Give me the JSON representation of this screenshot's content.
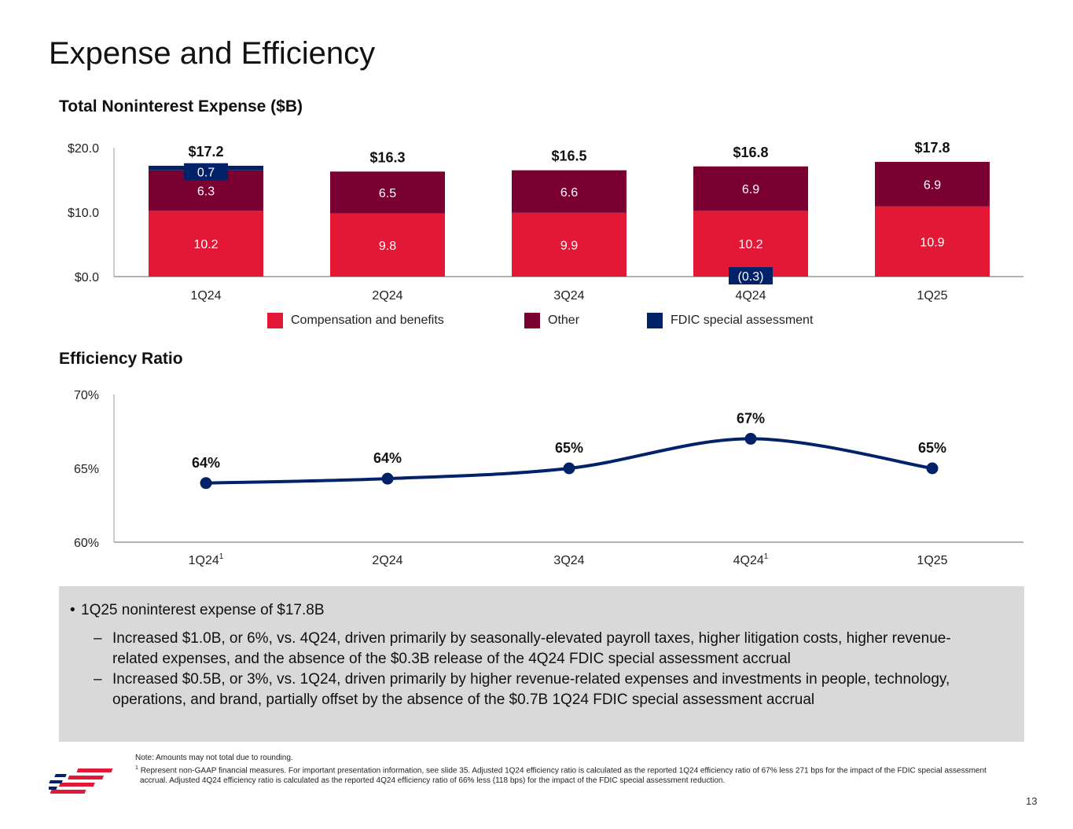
{
  "page_title": "Expense and Efficiency",
  "page_number": "13",
  "colors": {
    "compensation": "#e31837",
    "other": "#7a0031",
    "fdic": "#012169",
    "line": "#012169",
    "axis": "#999999"
  },
  "expense_chart": {
    "title": "Total Noninterest Expense ($B)",
    "y_ticks": [
      {
        "value": 0,
        "label": "$0.0"
      },
      {
        "value": 10,
        "label": "$10.0"
      },
      {
        "value": 20,
        "label": "$20.0"
      }
    ],
    "legend": {
      "compensation": "Compensation and benefits",
      "other": "Other",
      "fdic": "FDIC special assessment"
    }
  },
  "efficiency_chart": {
    "title": "Efficiency Ratio",
    "y_ticks": [
      {
        "value": 60,
        "label": "60%"
      },
      {
        "value": 65,
        "label": "65%"
      },
      {
        "value": 70,
        "label": "70%"
      }
    ]
  },
  "chart_data": [
    {
      "type": "bar",
      "stacked": true,
      "title": "Total Noninterest Expense ($B)",
      "categories": [
        "1Q24",
        "2Q24",
        "3Q24",
        "4Q24",
        "1Q25"
      ],
      "ylim": [
        0,
        20
      ],
      "series": [
        {
          "name": "Compensation and benefits",
          "values": [
            10.2,
            9.8,
            9.9,
            10.2,
            10.9
          ],
          "labels": [
            "10.2",
            "9.8",
            "9.9",
            "10.2",
            "10.9"
          ]
        },
        {
          "name": "Other",
          "values": [
            6.3,
            6.5,
            6.6,
            6.9,
            6.9
          ],
          "labels": [
            "6.3",
            "6.5",
            "6.6",
            "6.9",
            "6.9"
          ]
        },
        {
          "name": "FDIC special assessment",
          "values": [
            0.7,
            0,
            0,
            -0.3,
            0
          ],
          "labels": [
            "0.7",
            null,
            null,
            "(0.3)",
            null
          ]
        }
      ],
      "totals": [
        17.2,
        16.3,
        16.5,
        16.8,
        17.8
      ],
      "total_labels": [
        "$17.2",
        "$16.3",
        "$16.5",
        "$16.8",
        "$17.8"
      ]
    },
    {
      "type": "line",
      "title": "Efficiency Ratio",
      "categories": [
        "1Q24",
        "2Q24",
        "3Q24",
        "4Q24",
        "1Q25"
      ],
      "category_footnotes": [
        "1",
        "",
        "",
        "1",
        ""
      ],
      "values": [
        64.0,
        64.3,
        65.0,
        67.0,
        65.0
      ],
      "value_labels": [
        "64%",
        "64%",
        "65%",
        "67%",
        "65%"
      ],
      "ylim": [
        60,
        70
      ]
    }
  ],
  "commentary": {
    "bullet": "1Q25 noninterest expense of $17.8B",
    "subs": [
      "Increased $1.0B, or 6%, vs. 4Q24, driven primarily by seasonally-elevated payroll taxes, higher litigation costs, higher revenue-related expenses, and the absence of the $0.3B release of the 4Q24 FDIC special assessment accrual",
      "Increased $0.5B, or 3%, vs. 1Q24, driven primarily by higher revenue-related expenses and investments in people, technology, operations, and brand, partially offset by the absence of the $0.7B 1Q24 FDIC special assessment accrual"
    ]
  },
  "notes": {
    "note": "Note: Amounts may not total due to rounding.",
    "footnote_mark": "1",
    "footnote": "Represent non-GAAP financial measures. For important presentation information, see slide 35. Adjusted 1Q24 efficiency ratio is calculated as the reported 1Q24 efficiency ratio of 67% less 271 bps for the impact of the FDIC special assessment accrual. Adjusted 4Q24 efficiency ratio is calculated as the reported 4Q24 efficiency ratio of 66% less (118 bps) for the impact of the FDIC special assessment reduction."
  }
}
